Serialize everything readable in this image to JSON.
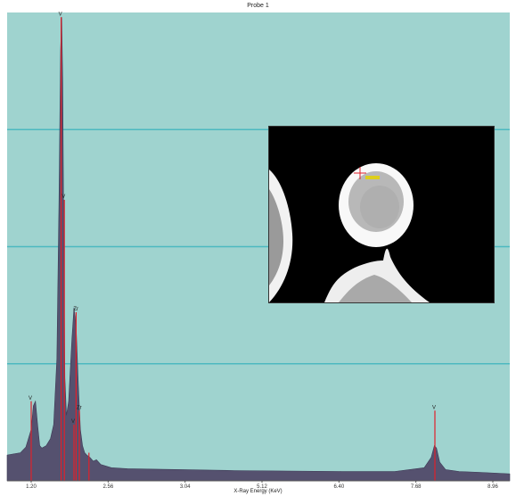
{
  "window": {
    "title": "Probe 1"
  },
  "colors": {
    "plot_bg": "#9fd3cf",
    "gridline": "#4cb9c0",
    "spectrum_fill": "#55516f",
    "marker": "#e0202a",
    "inset_bg": "#000000",
    "inset_particle": "#ffffff",
    "inset_core": "#b8b8b8",
    "probe_cross": "#e0202a",
    "probe_label": "#e4d200"
  },
  "chart_data": {
    "type": "area",
    "title": "Probe 1",
    "xlabel": "X-Ray Energy (KeV)",
    "ylabel": "",
    "grid": true,
    "xlim": [
      0.75,
      10.15
    ],
    "ylim": [
      0,
      1.0
    ],
    "x_ticks": [
      "1.20",
      "2.56",
      "3.04",
      "5.12",
      "6.40",
      "7.68",
      "8.96"
    ],
    "series": [
      {
        "x": [
          0.75,
          1.0,
          1.1,
          1.2,
          1.24,
          1.28,
          1.32,
          1.36,
          1.4,
          1.48,
          1.56,
          1.62,
          1.68,
          1.72,
          1.75,
          1.77,
          1.79,
          1.81,
          1.83,
          1.86,
          1.9,
          1.96,
          2.0,
          2.04,
          2.08,
          2.12,
          2.16,
          2.2,
          2.24,
          2.3,
          2.36,
          2.42,
          2.5,
          2.7,
          3.0,
          4.0,
          5.0,
          6.0,
          7.0,
          8.0,
          8.55,
          8.68,
          8.74,
          8.78,
          8.84,
          8.95,
          9.2,
          9.6,
          10.15
        ],
        "y": [
          0.055,
          0.06,
          0.072,
          0.11,
          0.16,
          0.17,
          0.12,
          0.075,
          0.07,
          0.075,
          0.09,
          0.12,
          0.26,
          0.6,
          0.92,
          0.99,
          0.85,
          0.5,
          0.22,
          0.14,
          0.17,
          0.3,
          0.37,
          0.33,
          0.21,
          0.11,
          0.075,
          0.06,
          0.055,
          0.05,
          0.042,
          0.045,
          0.035,
          0.028,
          0.026,
          0.024,
          0.022,
          0.021,
          0.02,
          0.02,
          0.028,
          0.05,
          0.075,
          0.07,
          0.04,
          0.024,
          0.02,
          0.018,
          0.015
        ]
      }
    ],
    "markers": [
      {
        "label": "V",
        "x": 1.2,
        "height": 0.17
      },
      {
        "label": "V",
        "x": 1.76,
        "height": 0.99
      },
      {
        "label": "V",
        "x": 1.82,
        "height": 0.6
      },
      {
        "label": "Zr",
        "x": 2.04,
        "height": 0.36
      },
      {
        "label": "Zr",
        "x": 2.1,
        "height": 0.15
      },
      {
        "label": "V",
        "x": 2.0,
        "height": 0.12
      },
      {
        "label": "",
        "x": 2.28,
        "height": 0.06
      },
      {
        "label": "V",
        "x": 8.75,
        "height": 0.15
      }
    ]
  }
}
